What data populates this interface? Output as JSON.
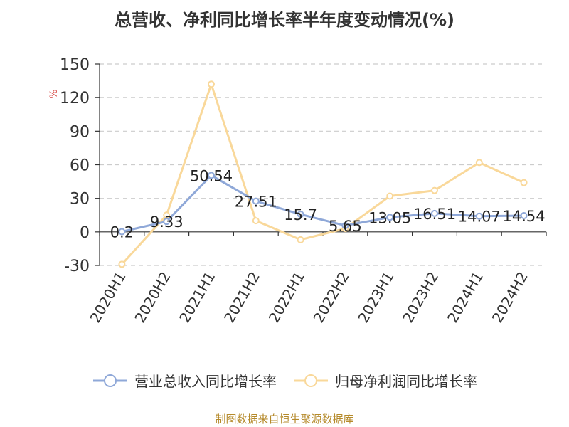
{
  "title": "总营收、净利同比增长率半年度变动情况(%)",
  "source": "制图数据来自恒生聚源数据库",
  "colors": {
    "revenue": "#8fa8d8",
    "profit": "#f9d89a",
    "unit": "#d9534f"
  },
  "chart_data": {
    "type": "line",
    "categories": [
      "2020H1",
      "2020H2",
      "2021H1",
      "2021H2",
      "2022H1",
      "2022H2",
      "2023H1",
      "2023H2",
      "2024H1",
      "2024H2"
    ],
    "ylabel": "%",
    "ylim": [
      -30,
      150
    ],
    "yticks": [
      -30,
      0,
      30,
      60,
      90,
      120,
      150
    ],
    "grid": true,
    "legend_position": "bottom",
    "series": [
      {
        "name": "营业总收入同比增长率",
        "values": [
          0.2,
          9.33,
          50.54,
          27.51,
          15.7,
          5.65,
          13.05,
          16.51,
          14.07,
          14.54
        ],
        "labels": [
          "0.2",
          "9.33",
          "50.54",
          "27.51",
          "15.7",
          "5.65",
          "13.05",
          "16.51",
          "14.07",
          "14.54"
        ]
      },
      {
        "name": "归母净利润同比增长率",
        "values": [
          -29,
          15,
          132,
          10,
          -7,
          3,
          32,
          37,
          62,
          44
        ]
      }
    ]
  }
}
